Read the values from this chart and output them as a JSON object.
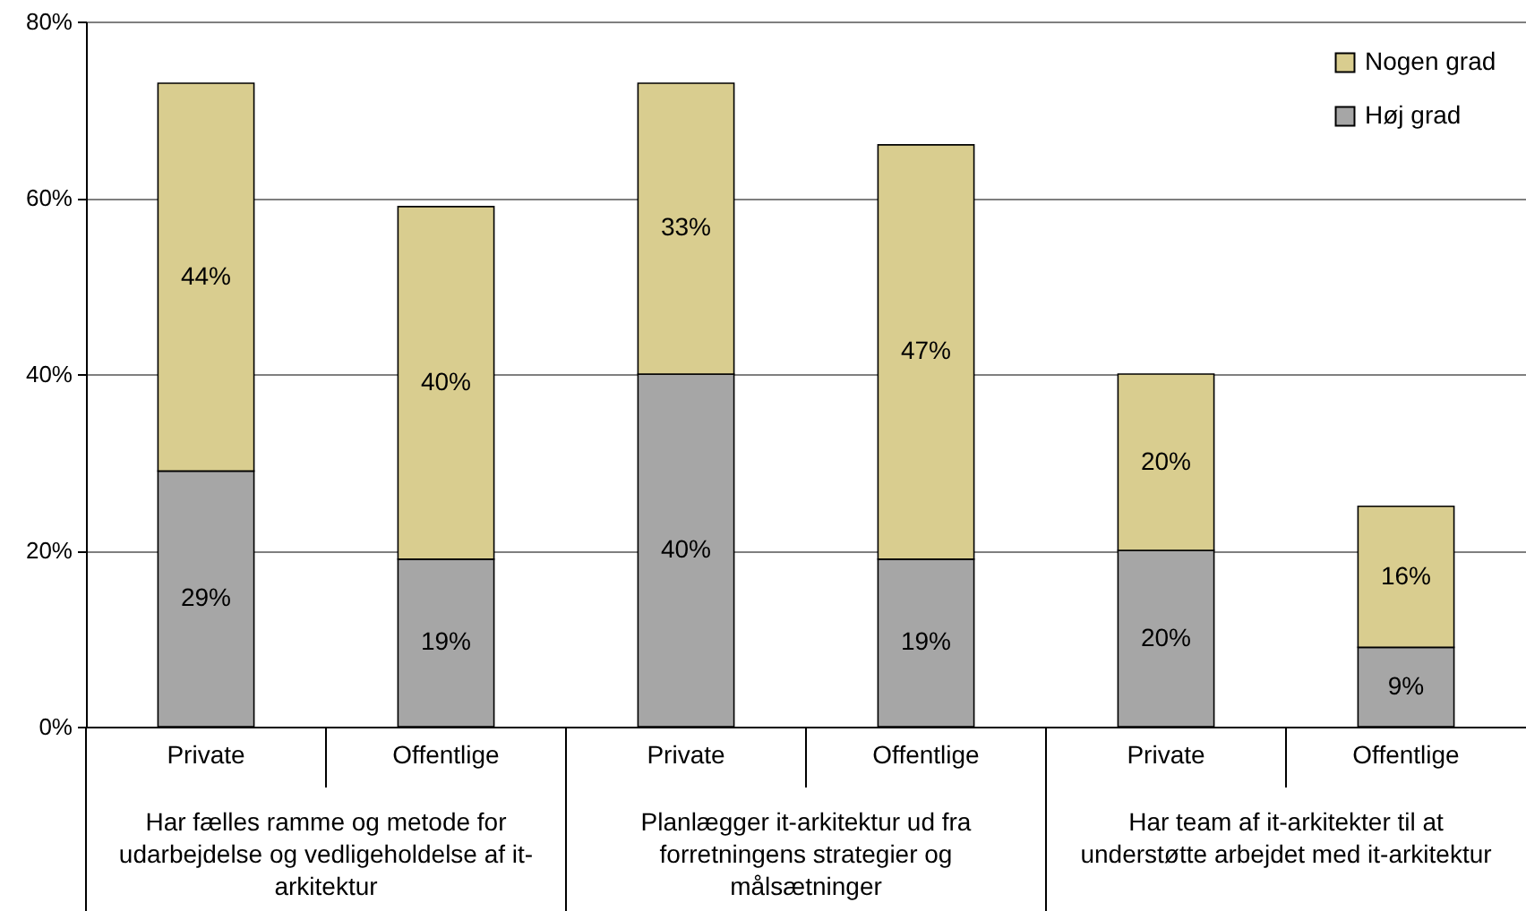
{
  "chart_data": {
    "type": "bar",
    "stacked": true,
    "categories": [
      "Private",
      "Offentlige",
      "Private",
      "Offentlige",
      "Private",
      "Offentlige"
    ],
    "series": [
      {
        "name": "Høj grad",
        "color": "#a6a6a6",
        "values": [
          29,
          19,
          40,
          19,
          20,
          9
        ],
        "value_labels": [
          "29%",
          "19%",
          "40%",
          "19%",
          "20%",
          "9%"
        ]
      },
      {
        "name": "Nogen grad",
        "color": "#d9cd8f",
        "values": [
          44,
          40,
          33,
          47,
          20,
          16
        ],
        "value_labels": [
          "44%",
          "40%",
          "33%",
          "47%",
          "20%",
          "16%"
        ]
      }
    ],
    "ylim": [
      0,
      80
    ],
    "yticks": [
      {
        "value": 0,
        "label": "0%"
      },
      {
        "value": 20,
        "label": "20%"
      },
      {
        "value": 40,
        "label": "40%"
      },
      {
        "value": 60,
        "label": "60%"
      },
      {
        "value": 80,
        "label": "80%"
      }
    ],
    "grid": "y",
    "legend": "top right",
    "annotations": [
      "Har fælles ramme og metode for udarbejdelse og vedligeholdelse af it-arkitektur",
      "Planlægger it-arkitektur ud fra forretningens strategier og målsætninger",
      "Har team af it-arkitekter til at understøtte arbejdet med it-arkitektur"
    ]
  }
}
